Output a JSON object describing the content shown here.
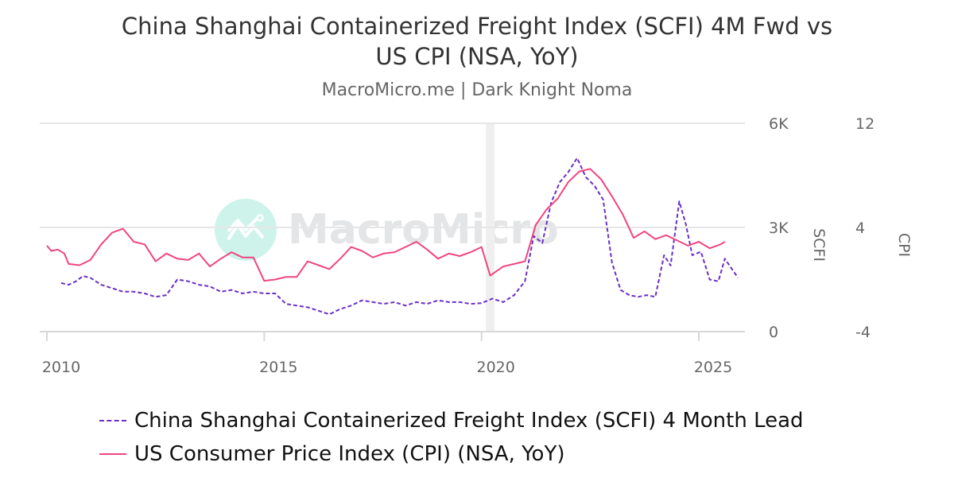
{
  "header": {
    "title_line1": "China Shanghai Containerized Freight Index (SCFI) 4M Fwd vs",
    "title_line2": "US CPI (NSA, YoY)",
    "subtitle": "MacroMicro.me | Dark Knight Noma"
  },
  "watermark": {
    "text": "MacroMicro"
  },
  "colors": {
    "scfi": "#6a2fc7",
    "cpi": "#f0457f",
    "grid": "#e6e6e6",
    "shade": "#efefef"
  },
  "legend": [
    {
      "label": "China Shanghai Containerized Freight Index (SCFI) 4 Month Lead",
      "style": "dashed",
      "color": "#6a2fc7"
    },
    {
      "label": "US Consumer Price Index (CPI) (NSA, YoY)",
      "style": "solid",
      "color": "#f0457f"
    }
  ],
  "chart_data": {
    "type": "line",
    "title": "China Shanghai Containerized Freight Index (SCFI) 4M Fwd vs US CPI (NSA, YoY)",
    "subtitle": "MacroMicro.me | Dark Knight Noma",
    "xlabel": "",
    "x_ticks": [
      "2010",
      "2015",
      "2020",
      "2025"
    ],
    "x_range": [
      2009.9,
      2025.95
    ],
    "y_axes": [
      {
        "name": "SCFI",
        "ticks": [
          "0",
          "3K",
          "6K"
        ],
        "tick_values": [
          0,
          3000,
          6000
        ],
        "range": [
          0,
          6000
        ]
      },
      {
        "name": "CPI",
        "ticks": [
          "-4",
          "4",
          "12"
        ],
        "tick_values": [
          -4,
          4,
          12
        ],
        "range": [
          -4,
          12
        ]
      }
    ],
    "shaded_region": {
      "from": 2020.1,
      "to": 2020.3,
      "label": "recession"
    },
    "grid": true,
    "legend_position": "bottom",
    "series": [
      {
        "name": "China Shanghai Containerized Freight Index (SCFI) 4 Month Lead",
        "axis": "SCFI",
        "style": "dashed",
        "points": [
          [
            2010.33,
            1400
          ],
          [
            2010.5,
            1350
          ],
          [
            2010.67,
            1450
          ],
          [
            2010.83,
            1600
          ],
          [
            2011.0,
            1550
          ],
          [
            2011.25,
            1350
          ],
          [
            2011.5,
            1250
          ],
          [
            2011.75,
            1150
          ],
          [
            2012.0,
            1150
          ],
          [
            2012.25,
            1100
          ],
          [
            2012.5,
            1000
          ],
          [
            2012.75,
            1050
          ],
          [
            2013.0,
            1500
          ],
          [
            2013.25,
            1450
          ],
          [
            2013.5,
            1350
          ],
          [
            2013.75,
            1300
          ],
          [
            2014.0,
            1150
          ],
          [
            2014.25,
            1200
          ],
          [
            2014.5,
            1100
          ],
          [
            2014.75,
            1150
          ],
          [
            2015.0,
            1100
          ],
          [
            2015.25,
            1100
          ],
          [
            2015.5,
            800
          ],
          [
            2015.75,
            750
          ],
          [
            2016.0,
            700
          ],
          [
            2016.25,
            600
          ],
          [
            2016.5,
            500
          ],
          [
            2016.75,
            650
          ],
          [
            2017.0,
            750
          ],
          [
            2017.25,
            900
          ],
          [
            2017.5,
            850
          ],
          [
            2017.75,
            800
          ],
          [
            2018.0,
            850
          ],
          [
            2018.25,
            750
          ],
          [
            2018.5,
            850
          ],
          [
            2018.75,
            800
          ],
          [
            2019.0,
            900
          ],
          [
            2019.25,
            850
          ],
          [
            2019.5,
            850
          ],
          [
            2019.75,
            800
          ],
          [
            2020.0,
            820
          ],
          [
            2020.25,
            950
          ],
          [
            2020.5,
            850
          ],
          [
            2020.75,
            1050
          ],
          [
            2021.0,
            1450
          ],
          [
            2021.2,
            2750
          ],
          [
            2021.4,
            2550
          ],
          [
            2021.6,
            3700
          ],
          [
            2021.8,
            4300
          ],
          [
            2022.0,
            4600
          ],
          [
            2022.2,
            5000
          ],
          [
            2022.4,
            4450
          ],
          [
            2022.6,
            4200
          ],
          [
            2022.8,
            3800
          ],
          [
            2023.0,
            2000
          ],
          [
            2023.2,
            1200
          ],
          [
            2023.4,
            1050
          ],
          [
            2023.6,
            1000
          ],
          [
            2023.8,
            1050
          ],
          [
            2024.0,
            1000
          ],
          [
            2024.2,
            2200
          ],
          [
            2024.35,
            1900
          ],
          [
            2024.55,
            3750
          ],
          [
            2024.7,
            3100
          ],
          [
            2024.85,
            2200
          ],
          [
            2025.05,
            2300
          ],
          [
            2025.25,
            1500
          ],
          [
            2025.45,
            1450
          ],
          [
            2025.6,
            2100
          ],
          [
            2025.9,
            1550
          ]
        ]
      },
      {
        "name": "US Consumer Price Index (CPI) (NSA, YoY)",
        "axis": "CPI",
        "style": "solid",
        "points": [
          [
            2010.0,
            2.6
          ],
          [
            2010.1,
            2.2
          ],
          [
            2010.25,
            2.3
          ],
          [
            2010.4,
            2.0
          ],
          [
            2010.5,
            1.2
          ],
          [
            2010.75,
            1.1
          ],
          [
            2011.0,
            1.5
          ],
          [
            2011.25,
            2.7
          ],
          [
            2011.5,
            3.6
          ],
          [
            2011.75,
            3.9
          ],
          [
            2012.0,
            2.9
          ],
          [
            2012.25,
            2.7
          ],
          [
            2012.5,
            1.4
          ],
          [
            2012.75,
            2.0
          ],
          [
            2013.0,
            1.6
          ],
          [
            2013.25,
            1.5
          ],
          [
            2013.5,
            2.0
          ],
          [
            2013.75,
            1.0
          ],
          [
            2014.0,
            1.6
          ],
          [
            2014.25,
            2.1
          ],
          [
            2014.5,
            1.7
          ],
          [
            2014.75,
            1.7
          ],
          [
            2015.0,
            -0.1
          ],
          [
            2015.25,
            0.0
          ],
          [
            2015.5,
            0.2
          ],
          [
            2015.75,
            0.2
          ],
          [
            2016.0,
            1.4
          ],
          [
            2016.25,
            1.1
          ],
          [
            2016.5,
            0.8
          ],
          [
            2016.75,
            1.6
          ],
          [
            2017.0,
            2.5
          ],
          [
            2017.25,
            2.2
          ],
          [
            2017.5,
            1.7
          ],
          [
            2017.75,
            2.0
          ],
          [
            2018.0,
            2.1
          ],
          [
            2018.25,
            2.5
          ],
          [
            2018.5,
            2.9
          ],
          [
            2018.75,
            2.3
          ],
          [
            2019.0,
            1.6
          ],
          [
            2019.25,
            2.0
          ],
          [
            2019.5,
            1.8
          ],
          [
            2019.75,
            2.1
          ],
          [
            2020.0,
            2.5
          ],
          [
            2020.2,
            0.3
          ],
          [
            2020.5,
            1.0
          ],
          [
            2020.75,
            1.2
          ],
          [
            2021.0,
            1.4
          ],
          [
            2021.25,
            4.2
          ],
          [
            2021.5,
            5.4
          ],
          [
            2021.75,
            6.2
          ],
          [
            2022.0,
            7.5
          ],
          [
            2022.25,
            8.3
          ],
          [
            2022.5,
            8.5
          ],
          [
            2022.75,
            7.7
          ],
          [
            2023.0,
            6.4
          ],
          [
            2023.25,
            5.0
          ],
          [
            2023.5,
            3.2
          ],
          [
            2023.75,
            3.7
          ],
          [
            2024.0,
            3.1
          ],
          [
            2024.25,
            3.4
          ],
          [
            2024.5,
            3.0
          ],
          [
            2024.75,
            2.6
          ],
          [
            2025.0,
            2.9
          ],
          [
            2025.25,
            2.4
          ],
          [
            2025.5,
            2.7
          ],
          [
            2025.6,
            2.9
          ]
        ]
      }
    ]
  }
}
